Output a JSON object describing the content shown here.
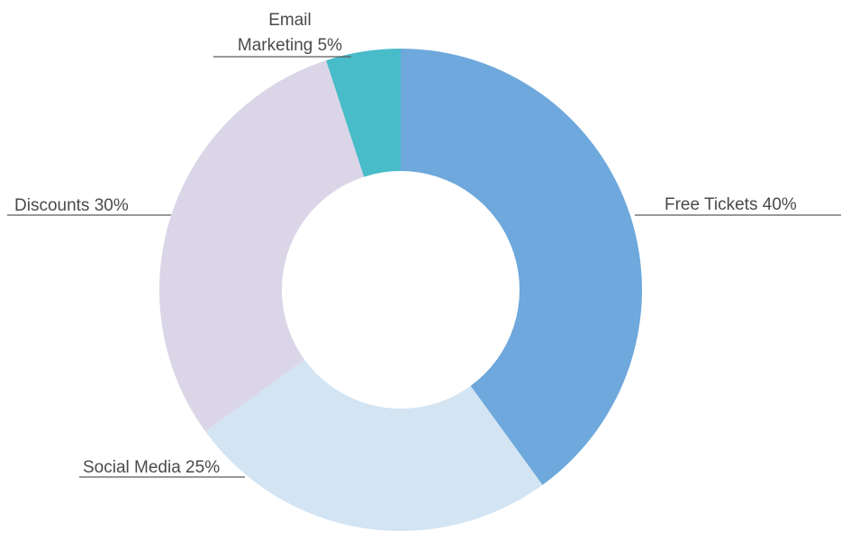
{
  "chart_data": {
    "type": "pie",
    "donut": true,
    "title": "",
    "start_angle_deg": 0,
    "direction": "clockwise",
    "slices": [
      {
        "name": "Free Tickets",
        "value": 40,
        "label_lines": [
          "Free Tickets 40%"
        ],
        "color": "#6ea8dc"
      },
      {
        "name": "Social Media",
        "value": 25,
        "label_lines": [
          "Social Media 25%"
        ],
        "color": "#d3e4f3"
      },
      {
        "name": "Discounts",
        "value": 30,
        "label_lines": [
          "Discounts 30%"
        ],
        "color": "#dbd5e8"
      },
      {
        "name": "Email Marketing",
        "value": 5,
        "label_lines": [
          "Email",
          "Marketing 5%"
        ],
        "color": "#48bcc8"
      }
    ],
    "legend": "none"
  }
}
